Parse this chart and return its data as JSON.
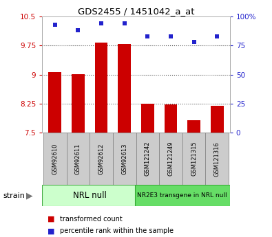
{
  "title": "GDS2455 / 1451042_a_at",
  "categories": [
    "GSM92610",
    "GSM92611",
    "GSM92612",
    "GSM92613",
    "GSM121242",
    "GSM121249",
    "GSM121315",
    "GSM121316"
  ],
  "bar_values": [
    9.07,
    9.01,
    9.82,
    9.8,
    8.25,
    8.24,
    7.83,
    8.2
  ],
  "scatter_values": [
    93,
    88,
    94,
    94,
    83,
    83,
    78,
    83
  ],
  "ymin": 7.5,
  "ymax": 10.5,
  "y2min": 0,
  "y2max": 100,
  "yticks": [
    7.5,
    8.25,
    9.0,
    9.75,
    10.5
  ],
  "ytick_labels": [
    "7.5",
    "8.25",
    "9",
    "9.75",
    "10.5"
  ],
  "y2ticks": [
    0,
    25,
    50,
    75,
    100
  ],
  "y2tick_labels": [
    "0",
    "25",
    "50",
    "75",
    "100%"
  ],
  "bar_color": "#cc0000",
  "scatter_color": "#2222cc",
  "group1_label": "NRL null",
  "group2_label": "NR2E3 transgene in NRL null",
  "group1_indices": [
    0,
    1,
    2,
    3
  ],
  "group2_indices": [
    4,
    5,
    6,
    7
  ],
  "group1_color": "#ccffcc",
  "group2_color": "#66dd66",
  "tick_label_color_left": "#cc0000",
  "tick_label_color_right": "#2222cc",
  "legend_tc": "transformed count",
  "legend_pr": "percentile rank within the sample",
  "strain_label": "strain",
  "dotted_grid_color": "#555555",
  "sample_box_color": "#cccccc",
  "sample_box_edge": "#888888"
}
